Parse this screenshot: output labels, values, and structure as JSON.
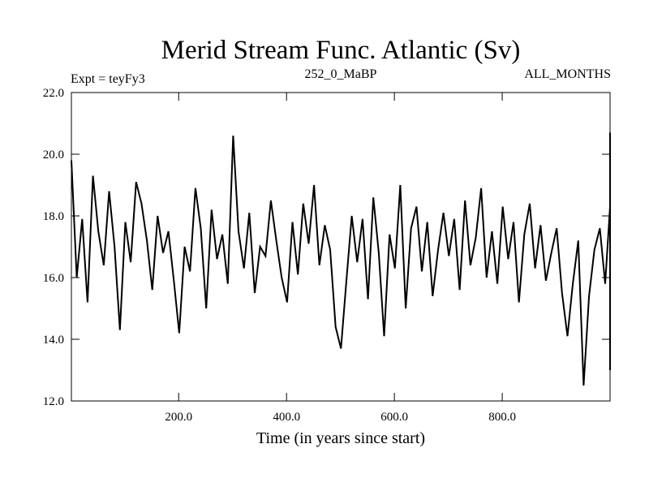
{
  "chart_data": {
    "type": "line",
    "title": "Merid Stream Func. Atlantic (Sv)",
    "subtitle_left": "Expt = teyFy3",
    "subtitle_center": "252_0_MaBP",
    "subtitle_right": "ALL_MONTHS",
    "xlabel": "Time (in years since start)",
    "ylabel": "",
    "xlim": [
      1,
      1000
    ],
    "ylim": [
      12.0,
      22.0
    ],
    "x_ticks": [
      200,
      400,
      600,
      800
    ],
    "x_tick_labels": [
      "200.0",
      "400.0",
      "600.0",
      "800.0"
    ],
    "y_ticks": [
      12,
      14,
      16,
      18,
      20,
      22
    ],
    "y_tick_labels": [
      "12.0",
      "14.0",
      "16.0",
      "18.0",
      "20.0",
      "22.0"
    ],
    "grid": false,
    "line_color": "#000000",
    "series": [
      {
        "name": "Merid Stream Func. Atlantic",
        "x_start": 1,
        "x_step": 10,
        "values": [
          19.8,
          16.0,
          17.9,
          15.2,
          19.3,
          17.5,
          16.4,
          18.8,
          17.0,
          14.3,
          17.8,
          16.5,
          19.1,
          18.4,
          17.2,
          15.6,
          18.0,
          16.8,
          17.5,
          15.9,
          14.2,
          17.0,
          16.2,
          18.9,
          17.6,
          15.0,
          18.2,
          16.6,
          17.4,
          15.8,
          20.6,
          17.5,
          16.3,
          18.1,
          15.5,
          17.0,
          16.7,
          18.5,
          17.2,
          16.0,
          15.2,
          17.8,
          16.1,
          18.4,
          17.1,
          19.0,
          16.4,
          17.7,
          16.9,
          14.4,
          13.7,
          15.9,
          18.0,
          16.5,
          17.9,
          15.3,
          18.6,
          16.8,
          14.1,
          17.4,
          16.3,
          19.0,
          15.0,
          17.6,
          18.3,
          16.2,
          17.8,
          15.4,
          16.9,
          18.1,
          16.7,
          17.9,
          15.6,
          18.5,
          16.4,
          17.3,
          18.9,
          16.0,
          17.5,
          15.8,
          18.3,
          16.6,
          17.8,
          15.2,
          17.4,
          18.4,
          16.3,
          17.7,
          15.9,
          16.8,
          17.6,
          15.5,
          14.1,
          15.8,
          17.2,
          12.5,
          15.4,
          16.9,
          17.6,
          15.8,
          18.3,
          16.4,
          17.5,
          15.6,
          18.0,
          16.8,
          17.2,
          15.3,
          18.4,
          16.1,
          17.7,
          18.6,
          16.4,
          17.6,
          15.9,
          18.2,
          16.7,
          17.3,
          19.6,
          16.5,
          18.0,
          17.1,
          16.0,
          18.3,
          17.4,
          15.9,
          18.5,
          16.9,
          17.8,
          16.2,
          17.5,
          19.0,
          17.2,
          15.8,
          16.6,
          18.4,
          17.1,
          18.9,
          16.5,
          17.6,
          19.6,
          20.7,
          17.4,
          16.0,
          17.6,
          15.2,
          18.1,
          16.7,
          17.5,
          16.1,
          18.9,
          17.2,
          15.1,
          18.4,
          16.6,
          17.7,
          14.6,
          17.2,
          16.0,
          18.2,
          16.8,
          17.6,
          15.6,
          19.2,
          17.3,
          16.1,
          18.6,
          17.0,
          16.5,
          18.1,
          15.9,
          17.4,
          15.9,
          17.8,
          16.6,
          17.2,
          18.3,
          16.4,
          17.6,
          15.7,
          17.1,
          18.5,
          16.3,
          17.4,
          15.5,
          18.2,
          16.9,
          17.7,
          16.6,
          18.3,
          17.0,
          14.5,
          16.1,
          17.8,
          15.2,
          18.0,
          16.6,
          18.6,
          17.3,
          16.0,
          15.8,
          18.9,
          17.0,
          13.9,
          17.5,
          16.2,
          16.4,
          18.2,
          17.1,
          19.4,
          16.7,
          17.8,
          15.5,
          18.1,
          16.9,
          17.5,
          15.3,
          17.6,
          18.9,
          17.3,
          16.7,
          18.2,
          17.0,
          15.6,
          17.9,
          20.3,
          16.4,
          18.5,
          16.9,
          17.6,
          15.9,
          18.3,
          16.5,
          17.2,
          14.7,
          18.7,
          17.0,
          15.9,
          18.3,
          16.3,
          17.5,
          19.6,
          16.8,
          17.6,
          15.1,
          18.1,
          16.6,
          17.3,
          18.6,
          16.1,
          17.5,
          16.9,
          15.7,
          18.4,
          17.2,
          16.3,
          18.1,
          15.3,
          17.4,
          18.8,
          16.4,
          17.3,
          15.6,
          18.6,
          16.2,
          17.5,
          16.6,
          15.8,
          17.7,
          16.3,
          17.2,
          18.5,
          16.0,
          17.4,
          19.3,
          16.8,
          18.2,
          15.9,
          17.6,
          16.4,
          17.3,
          15.9,
          18.1,
          19.8,
          16.7,
          17.6,
          18.8,
          16.2,
          17.8,
          15.5,
          14.0,
          17.4,
          16.1,
          18.3,
          16.9,
          17.5,
          16.2,
          18.5,
          19.1,
          17.7,
          16.1,
          17.3,
          18.9,
          16.6,
          17.8,
          16.4,
          18.1,
          17.2,
          16.0,
          17.4,
          15.6,
          17.1,
          19.3,
          16.7,
          18.2,
          15.8,
          17.5,
          16.4,
          17.6,
          18.6,
          16.9,
          18.2,
          16.5,
          17.3,
          15.8,
          17.9,
          18.6,
          17.2,
          16.9,
          17.8,
          16.0,
          18.5,
          17.1,
          17.6,
          16.7,
          17.9,
          15.9,
          16.8,
          18.0,
          17.4,
          16.3,
          17.8,
          18.5,
          17.4,
          16.9,
          17.5,
          15.3,
          16.4,
          14.8,
          17.6,
          15.6,
          16.9,
          15.8,
          17.4,
          13.9,
          15.4,
          17.2,
          18.8,
          13.5,
          17.1,
          15.7,
          16.1,
          15.7,
          18.4,
          16.2,
          17.6,
          15.0,
          14.5,
          16.8,
          18.6,
          15.3,
          13.6,
          15.7,
          15.4,
          15.8,
          16.3,
          17.8,
          15.2,
          18.1,
          16.7,
          17.3,
          16.9,
          15.8,
          18.2,
          16.5,
          14.1,
          17.6,
          16.1,
          18.3,
          16.2,
          14.0,
          16.4,
          17.2,
          18.6,
          15.1,
          17.5,
          14.1,
          16.8,
          18.5,
          16.7,
          17.1,
          16.0,
          17.4,
          15.6,
          18.8,
          16.5,
          15.4,
          18.0,
          16.3,
          17.5,
          16.8,
          16.4,
          17.1,
          15.5,
          17.9,
          16.8,
          17.4,
          16.1,
          17.8,
          16.6,
          15.4,
          17.6,
          16.4,
          17.5,
          16.8,
          17.2,
          15.3,
          18.6,
          16.9,
          17.7,
          16.0,
          15.7,
          17.3,
          16.2,
          17.6,
          15.2,
          17.1,
          16.6,
          17.5,
          15.0,
          16.3,
          17.4,
          16.1,
          17.7,
          16.9,
          15.4,
          17.2,
          16.0,
          17.6,
          15.8,
          17.4,
          16.8,
          17.1,
          16.3,
          15.5,
          16.9,
          16.9,
          18.1,
          16.7,
          17.5,
          16.4,
          17.2,
          15.9,
          16.7,
          18.0,
          16.2,
          17.5,
          16.5,
          17.3,
          15.5,
          17.7,
          16.4,
          18.2,
          16.9,
          17.3,
          16.1,
          17.6,
          18.7,
          16.9,
          16.1,
          17.8,
          19.3,
          16.7,
          18.3,
          17.1,
          15.9,
          17.9,
          16.8,
          18.4,
          17.2,
          17.2,
          16.5,
          18.6,
          17.0,
          16.9,
          18.4,
          17.0,
          16.1,
          17.8,
          16.6,
          20.4,
          18.1,
          17.5,
          18.9,
          16.8,
          18.2,
          17.6,
          16.7,
          18.1,
          17.3,
          16.1,
          17.9,
          18.4,
          17.4,
          16.6,
          18.2,
          15.8,
          17.5,
          18.7,
          13.8,
          16.2,
          13.5,
          15.9,
          14.8,
          16.5,
          13.0,
          16.8,
          19.5,
          17.6,
          16.5
        ]
      }
    ]
  }
}
